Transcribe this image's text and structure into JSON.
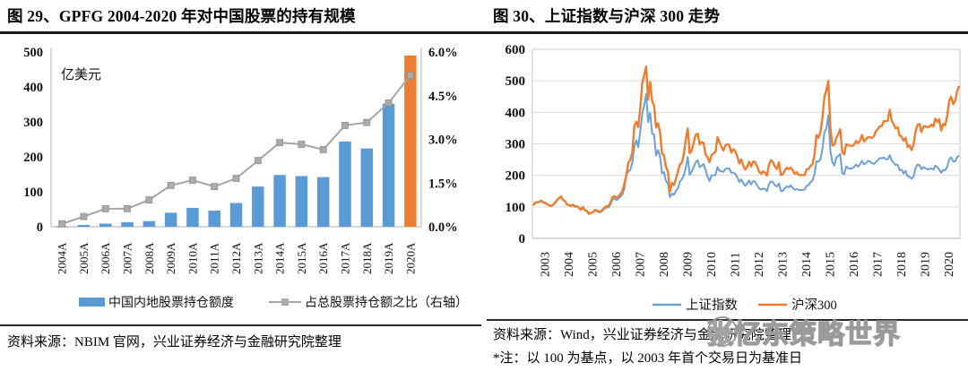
{
  "figure29": {
    "title": "图 29、GPFG 2004-2020 年对中国股票的持有规模",
    "source": "资料来源：NBIM 官网，兴业证券经济与金融研究院整理"
  },
  "figure30": {
    "title": "图 30、上证指数与沪深 300 走势",
    "source": "资料来源：Wind，兴业证券经济与金融研究院整理",
    "note": "*注：以 100 为基点，以 2003 年首个交易日为基准日",
    "watermark": "张忆东策略世界"
  },
  "colors": {
    "bar_blue": "#5B9BD5",
    "highlight_orange": "#ED7D31",
    "ratio_gray": "#A6A6A6",
    "sse_blue": "#6E9FD7",
    "csi_orange": "#ED7D31",
    "gridline": "#D9D9D9",
    "axis": "#BFBFBF"
  },
  "chart_data": [
    {
      "figure": "29",
      "type": "bar+line",
      "title": "GPFG 2004-2020 年对中国股票的持有规模",
      "value_unit_label": "亿美元",
      "categories": [
        "2004A",
        "2005A",
        "2006A",
        "2007A",
        "2008A",
        "2009A",
        "2010A",
        "2011A",
        "2012A",
        "2013A",
        "2014A",
        "2015A",
        "2016A",
        "2017A",
        "2018A",
        "2019A",
        "2020A"
      ],
      "series": [
        {
          "name": "中国内地股票持仓额度",
          "type": "bar",
          "axis": "left",
          "color": "#5B9BD5",
          "last_bar_color": "#ED7D31",
          "values": [
            1,
            5,
            9,
            13,
            16,
            40,
            54,
            46,
            68,
            115,
            148,
            145,
            142,
            244,
            224,
            352,
            490
          ]
        },
        {
          "name": "占总股票持仓额之比（右轴）",
          "type": "line",
          "axis": "right",
          "color": "#A6A6A6",
          "values": [
            0.1,
            0.35,
            0.62,
            0.62,
            0.92,
            1.42,
            1.6,
            1.38,
            1.66,
            2.27,
            2.89,
            2.83,
            2.65,
            3.48,
            3.58,
            4.25,
            5.2
          ]
        }
      ],
      "left_axis": {
        "range": [
          0,
          500
        ],
        "ticks": [
          0,
          100,
          200,
          300,
          400,
          500
        ]
      },
      "right_axis": {
        "range": [
          0,
          6
        ],
        "ticks": [
          0,
          1.5,
          3,
          4.5,
          6
        ],
        "tick_labels": [
          "0.0%",
          "1.5%",
          "3.0%",
          "4.5%",
          "6.0%"
        ]
      },
      "grid": false,
      "legend_position": "bottom"
    },
    {
      "figure": "30",
      "type": "line",
      "title": "上证指数与沪深 300 走势",
      "x_tick_labels": [
        "2003",
        "2004",
        "2005",
        "2006",
        "2007",
        "2008",
        "2009",
        "2010",
        "2011",
        "2012",
        "2013",
        "2014",
        "2015",
        "2016",
        "2017",
        "2018",
        "2019",
        "2020"
      ],
      "y_axis": {
        "range": [
          0,
          600
        ],
        "ticks": [
          0,
          100,
          200,
          300,
          400,
          500,
          600
        ]
      },
      "grid": true,
      "legend_position": "bottom",
      "sampling": "monthly 2003-01 .. 2020-12, indexed to 100 at first trading day of 2003",
      "series": [
        {
          "name": "上证指数",
          "color": "#6E9FD7",
          "values": [
            105,
            113,
            114,
            115,
            119,
            113,
            112,
            108,
            104,
            102,
            106,
            113,
            120,
            127,
            132,
            121,
            118,
            106,
            105,
            102,
            106,
            100,
            101,
            96,
            90,
            99,
            89,
            88,
            80,
            82,
            82,
            88,
            87,
            83,
            83,
            88,
            95,
            98,
            98,
            109,
            124,
            127,
            122,
            126,
            133,
            139,
            159,
            203,
            211,
            218,
            241,
            291,
            311,
            289,
            339,
            395,
            421,
            458,
            369,
            399,
            332,
            329,
            263,
            280,
            260,
            207,
            210,
            182,
            174,
            131,
            142,
            138,
            151,
            158,
            180,
            188,
            199,
            224,
            258,
            202,
            211,
            227,
            242,
            248,
            226,
            231,
            236,
            218,
            196,
            182,
            200,
            200,
            201,
            226,
            214,
            213,
            211,
            220,
            222,
            221,
            208,
            209,
            205,
            194,
            179,
            187,
            177,
            167,
            174,
            184,
            171,
            182,
            180,
            169,
            159,
            155,
            158,
            157,
            150,
            172,
            181,
            179,
            169,
            165,
            174,
            150,
            151,
            159,
            165,
            162,
            168,
            160,
            154,
            156,
            154,
            153,
            154,
            155,
            167,
            168,
            179,
            183,
            203,
            245,
            243,
            251,
            284,
            337,
            349,
            390,
            278,
            243,
            231,
            256,
            261,
            268,
            207,
            204,
            228,
            223,
            221,
            222,
            226,
            234,
            228,
            235,
            246,
            235,
            239,
            246,
            244,
            239,
            236,
            242,
            248,
            255,
            254,
            257,
            251,
            251,
            264,
            247,
            240,
            233,
            234,
            216,
            218,
            206,
            214,
            197,
            196,
            189,
            196,
            223,
            234,
            233,
            220,
            226,
            222,
            219,
            220,
            222,
            218,
            231,
            226,
            218,
            208,
            217,
            216,
            226,
            251,
            257,
            244,
            244,
            257,
            263
          ]
        },
        {
          "name": "沪深300",
          "color": "#ED7D31",
          "values": [
            105,
            114,
            115,
            116,
            120,
            114,
            113,
            109,
            105,
            103,
            107,
            114,
            121,
            128,
            133,
            122,
            119,
            107,
            106,
            103,
            107,
            101,
            102,
            97,
            91,
            100,
            90,
            88,
            78,
            81,
            82,
            90,
            89,
            85,
            85,
            91,
            98,
            102,
            102,
            115,
            131,
            134,
            129,
            133,
            141,
            150,
            174,
            200,
            240,
            249,
            274,
            356,
            370,
            353,
            412,
            492,
            518,
            545,
            440,
            496,
            436,
            420,
            352,
            365,
            337,
            269,
            264,
            226,
            213,
            149,
            176,
            169,
            189,
            212,
            234,
            240,
            265,
            314,
            349,
            270,
            279,
            304,
            329,
            332,
            298,
            305,
            303,
            266,
            257,
            242,
            264,
            270,
            274,
            321,
            306,
            291,
            279,
            295,
            299,
            296,
            272,
            283,
            277,
            260,
            238,
            250,
            231,
            218,
            227,
            243,
            228,
            244,
            242,
            229,
            212,
            205,
            213,
            209,
            199,
            234,
            248,
            242,
            228,
            220,
            241,
            201,
            203,
            216,
            224,
            220,
            225,
            216,
            205,
            210,
            201,
            201,
            201,
            201,
            219,
            220,
            230,
            235,
            266,
            328,
            319,
            336,
            383,
            450,
            470,
            500,
            352,
            295,
            297,
            319,
            330,
            346,
            274,
            267,
            299,
            296,
            294,
            293,
            297,
            309,
            302,
            310,
            328,
            307,
            315,
            321,
            321,
            319,
            324,
            340,
            347,
            356,
            356,
            372,
            372,
            374,
            408,
            374,
            362,
            349,
            353,
            326,
            323,
            310,
            319,
            290,
            295,
            280,
            297,
            339,
            360,
            363,
            337,
            355,
            356,
            353,
            354,
            361,
            355,
            380,
            369,
            378,
            342,
            363,
            359,
            387,
            436,
            450,
            426,
            436,
            466,
            484
          ]
        }
      ]
    }
  ]
}
